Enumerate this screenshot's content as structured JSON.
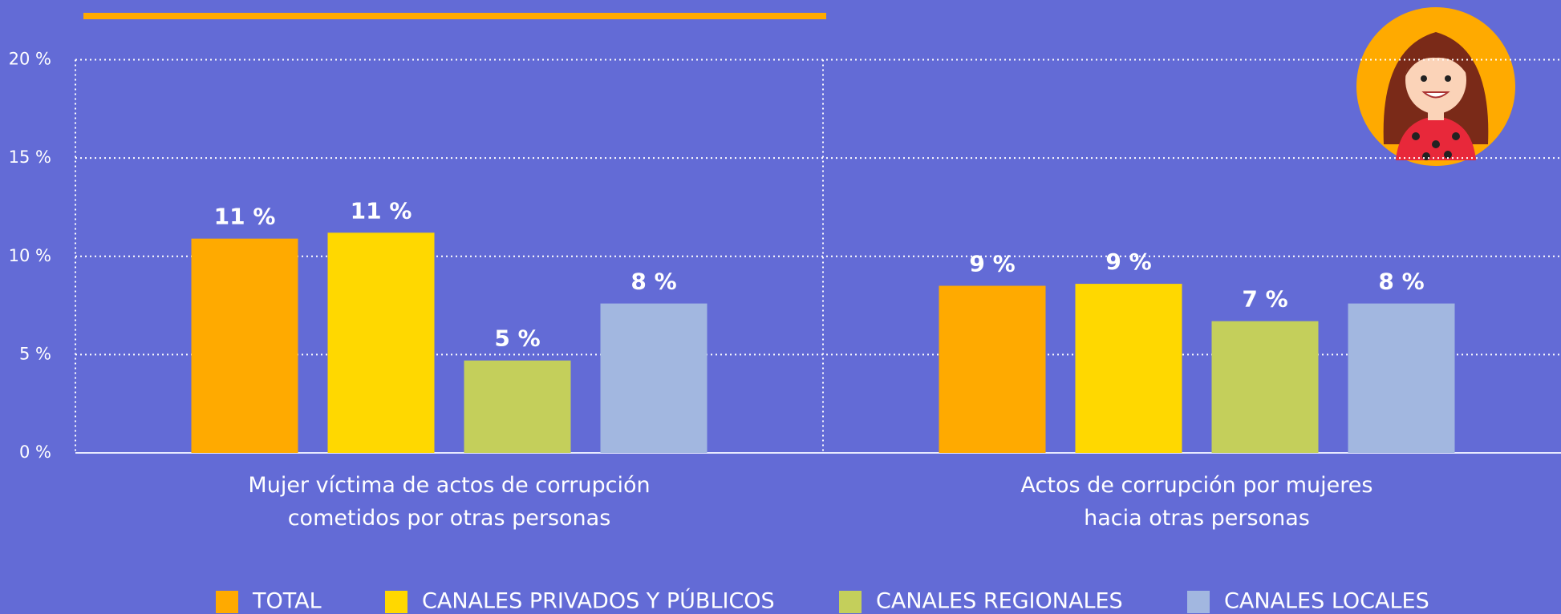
{
  "chart_data": {
    "type": "bar",
    "categories": [
      "Mujer víctima de actos  de corrupción\ncometidos por otras personas",
      "Actos de corrupción por  mujeres\nhacia otras personas"
    ],
    "series": [
      {
        "name": "TOTAL",
        "color": "#ffaa00",
        "values": [
          10.9,
          8.5
        ],
        "value_labels": [
          "11 %",
          "9 %"
        ]
      },
      {
        "name": "CANALES PRIVADOS Y PÚBLICOS",
        "color": "#ffd800",
        "values": [
          11.2,
          8.6
        ],
        "value_labels": [
          "11 %",
          "9 %"
        ]
      },
      {
        "name": "CANALES REGIONALES",
        "color": "#c4cf5b",
        "values": [
          4.7,
          6.7
        ],
        "value_labels": [
          "5 %",
          "7 %"
        ]
      },
      {
        "name": "CANALES LOCALES",
        "color": "#a2b7e0",
        "values": [
          7.6,
          7.6
        ],
        "value_labels": [
          "8 %",
          "8 %"
        ]
      }
    ],
    "ylim": [
      0,
      20
    ],
    "yticks": [
      {
        "value": 0,
        "label": "0 %"
      },
      {
        "value": 5,
        "label": "5 %"
      },
      {
        "value": 10,
        "label": "10 %"
      },
      {
        "value": 15,
        "label": "15 %"
      },
      {
        "value": 20,
        "label": "20 %"
      }
    ],
    "grid": true,
    "legend": "bottom"
  }
}
